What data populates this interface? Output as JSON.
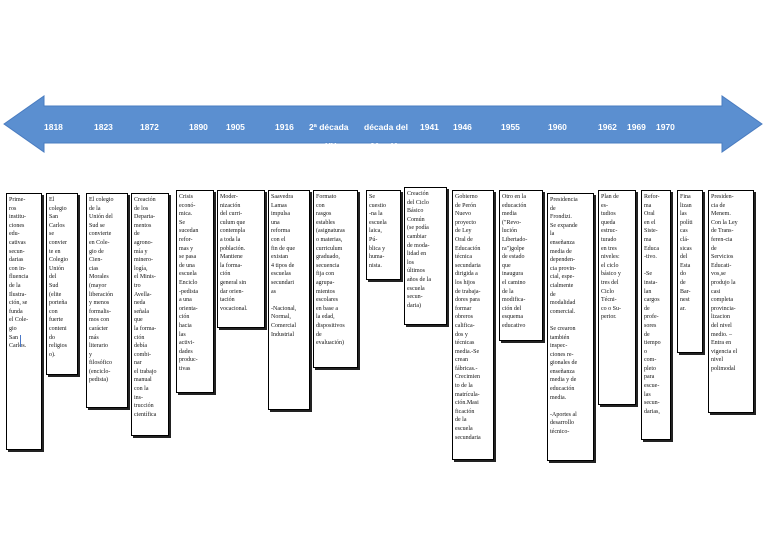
{
  "timeline": {
    "arrow_color": "#5b8fd0",
    "years": {
      "y1818": "1818",
      "y1823": "1823",
      "y1872": "1872",
      "y1890": "1890",
      "y1905": "1905",
      "y1916": "1916",
      "y2decada": "2ª década",
      "ydecadadel": "década del",
      "y1941": "1941",
      "y1946": "1946",
      "y1955": "1955",
      "y1960": "1960",
      "y1962": "1962",
      "y1969": "1969",
      "y1970": "1970",
      "sxx": "s.XX",
      "s3040": "30 y 40"
    }
  },
  "boxes": {
    "b1818": "Prime-\nros\ninstitu-\nciones\nedu-\ncativas\nsecun-\ndarias\ncon in-\nfluencia\nde la\nIlustra-\nción, se\nfunda\nel Cole-\ngio\nSan\nCarlos.",
    "b1823": "El\ncolegio\nSan\nCarlos\nse\nconvier\nte en\nColegio\nUnión\ndel\nSud\n(elite\nporteña\ncon\nfuerte\nconteni\ndo\nreligios\no).",
    "b1823b": "El colegio\nde la\nUnión del\nSud se\nconvierte\nen Cole-\ngio de\nCien-\ncias\nMorales\n(mayor\nliberación\ny menos\nformalis-\nmos con\ncarácter\nmás\nliterario\ny\nfilosófico\n(enciclo-\npedista)",
    "b1872": "Creación\nde los\nDeparta-\nmentos\nde\nagrono-\nmía y\nminero-\nlogía,\nel Minis-\ntro\nAvella-\nneda\nseñala\nque\nla forma-\nción\ndebía\ncombi-\nnar\nel trabajo\nmanual\ncon la\nins-\ntrucción\ncientífica",
    "b1890": "Crisis\neconó-\nmica.\nSe\nsucedan\nrefor-\nmas y\nse pasa\nde una\nescuela\nEnciclo\n-pedista\na una\norienta-\nción\nhacia\nlas\nactivi-\ndades\nproduc-\ntivas",
    "b1905": "Moder-\nnización\ndel curri-\nculum que\ncontempla\na toda la\npoblación.\nMantiene\nla forma-\nción\ngeneral sin\ndar orien-\ntación\nvocacional.",
    "b1916": "Saavedra\nLamas\nimpulsa\nuna\nreforma\ncon el\nfin de que\nexistan\n4 tipos de\nescuelas\nsecundari\nas\n\n-Nacional,\nNormal,\nComercial\nIndustrial",
    "b2decada": "Formato\ncon\nrasgos\nestables\n(asignaturas\no materias,\ncurriculum\ngraduado,\nsecuencia\nfija con\nagrupa-\nmientos\nescolares\nen base a\nla edad,\ndispositivos\nde\nevaluación)",
    "bdecada": "Se\ncuestio\n-na la\nescuela\nlaica,\nPú-\nblica y\nhuma-\nnista.",
    "b1941": "Creación\ndel Ciclo\nBásico\nComún\n(se podía\ncambiar\nde moda-\nlidad en\nlos\núltimos\naños de la\nescuela\nsecun-\ndaria)",
    "b1946": "Gobierno\nde Perón\nNuevo\nproyecto\nde Ley\nOral de\nEducación\ntécnica\nsecundaria\ndirigida a\nlos hijos\nde trabaja-\ndores para\nformar\nobreros\ncalifica-\ndos y\ntécnicas\nmedia.-Se\ncrean\nfábricas.-\nCrecimien\nto de la\nmatrícula-\nción.Masi\nficación\nde la\nescuela\nsecundaria",
    "b1955": "Otro en la\neducación\nmedia\n(\"Revo-\nlución\nLibertado-\nra\")golpe\nde estado\nque\ninaugura\nel camino\nde la\nmodifica-\nción del\nesquema\neducativo",
    "b1960": "Presidencia\nde\nFrondizi.\nSe expande\nla\nenseñanza\nmedia de\ndependen-\ncia provin-\ncial, espe-\ncialmente\nde\nmodalidad\ncomercial.\n\nSe crearon\ntambién\ninspec-\nciones re-\ngionales de\nenseñanza\nmedia y de\neducación\nmedia.\n\n-Aportes al\ndesarrollo\ntécnico-",
    "b1962": "Plan de\nes-\ntudios\nqueda\nestruc-\nturado\nen tres\nniveles:\nel ciclo\nbásico y\ntres del\nCiclo\nTécni-\nco o Su-\nperior.",
    "b1969": "Refor-\nma\nOral\nen el\nSiste-\nma\nEduca\n-tivo.\n\n-Se\ninsta-\nlan\ncargos\nde\nprofe-\nsores\nde\ntiempo\no\ncom-\npleto\npara\nescue-\nlas\nsecun-\ndarias,",
    "b1970": "Fina\nlizan\nlas\npolíti\ncas\nclá-\nsicas\ndel\nEsta\ndo\nde\nBar-\nnest\nar.",
    "bmenem": "Presiden-\ncia de\nMenem.\nCon la Ley\nde Trans-\nferen-cia\nde\nServicios\nEducati-\nvos,se\nprodujo la\ncasi\ncompleta\nprovincia-\nlizacion\ndel nivel\nmedio. –\nEntra en\nvigencia el\nnivel\npolimodal"
  }
}
